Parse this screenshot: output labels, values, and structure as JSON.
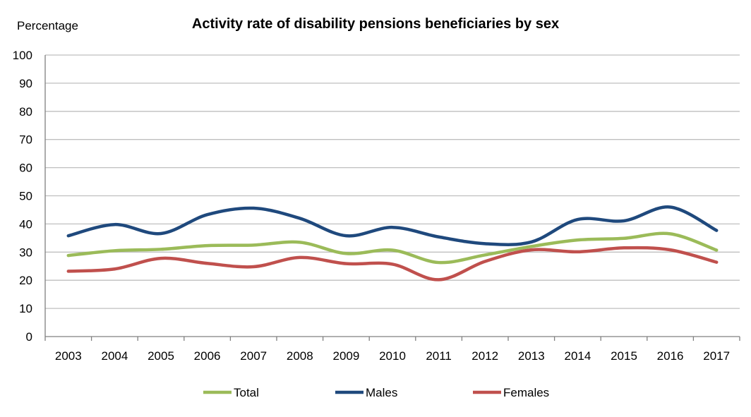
{
  "chart_data": {
    "type": "line",
    "title": "Activity rate of disability pensions beneficiaries by sex",
    "ylabel": "Percentage",
    "xlabel": "",
    "ylim": [
      0,
      100
    ],
    "yticks": [
      0,
      10,
      20,
      30,
      40,
      50,
      60,
      70,
      80,
      90,
      100
    ],
    "x": [
      "2003",
      "2004",
      "2005",
      "2006",
      "2007",
      "2008",
      "2009",
      "2010",
      "2011",
      "2012",
      "2013",
      "2014",
      "2015",
      "2016",
      "2017"
    ],
    "series": [
      {
        "name": "Total",
        "color": "#9bbb59",
        "values": [
          28.8,
          30.5,
          31.0,
          32.3,
          32.5,
          33.5,
          29.5,
          30.7,
          26.3,
          29.0,
          32.0,
          34.3,
          34.9,
          36.5,
          30.7
        ]
      },
      {
        "name": "Males",
        "color": "#1f497d",
        "values": [
          35.8,
          39.8,
          36.6,
          43.3,
          45.6,
          42.0,
          35.8,
          38.8,
          35.4,
          33.0,
          33.6,
          41.6,
          41.1,
          46.0,
          37.7
        ]
      },
      {
        "name": "Females",
        "color": "#c0504d",
        "values": [
          23.2,
          24.0,
          27.8,
          26.0,
          24.8,
          28.1,
          25.9,
          25.7,
          20.2,
          26.7,
          30.8,
          30.1,
          31.5,
          30.8,
          26.4
        ]
      }
    ],
    "grid": true,
    "legend": "bottom"
  }
}
